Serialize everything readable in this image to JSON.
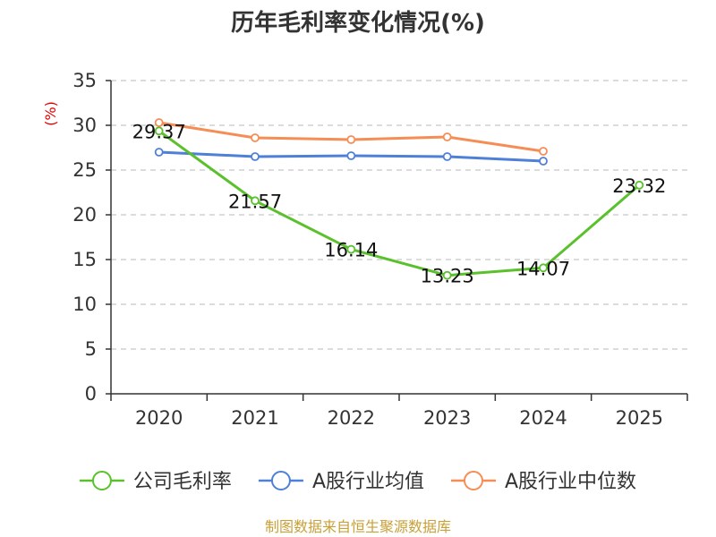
{
  "chart_data": {
    "type": "line",
    "title": "历年毛利率变化情况(%)",
    "xlabel": "",
    "ylabel": "(%)",
    "categories": [
      "2020",
      "2021",
      "2022",
      "2023",
      "2024",
      "2025"
    ],
    "ylim": [
      0,
      35
    ],
    "yticks": [
      0,
      5,
      10,
      15,
      20,
      25,
      30,
      35
    ],
    "ytick_labels": [
      "0",
      "5",
      "10",
      "15",
      "20",
      "25",
      "30",
      "35"
    ],
    "grid": true,
    "legend_position": "bottom",
    "series": [
      {
        "name": "公司毛利率",
        "color": "#5ac12c",
        "values": [
          29.37,
          21.57,
          16.14,
          13.23,
          14.07,
          23.32
        ],
        "labels": [
          "29.37",
          "21.57",
          "16.14",
          "13.23",
          "14.07",
          "23.32"
        ]
      },
      {
        "name": "A股行业均值",
        "color": "#4f80d8",
        "values": [
          27.0,
          26.5,
          26.6,
          26.5,
          26.0,
          null
        ]
      },
      {
        "name": "A股行业中位数",
        "color": "#f58d55",
        "values": [
          30.3,
          28.6,
          28.4,
          28.7,
          27.1,
          null
        ]
      }
    ],
    "source": "制图数据来自恒生聚源数据库"
  }
}
